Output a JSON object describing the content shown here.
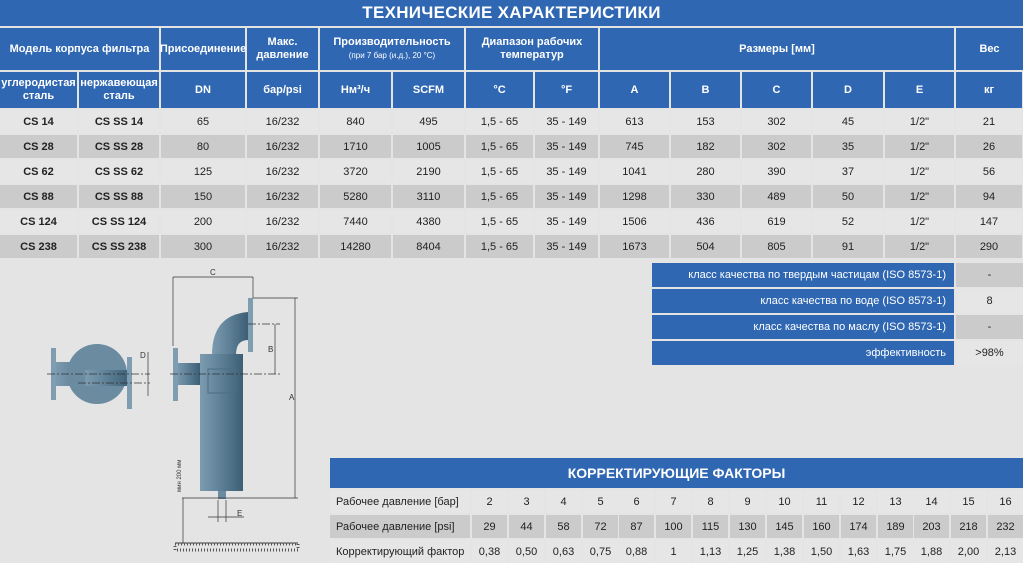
{
  "title": "ТЕХНИЧЕСКИЕ ХАРАКТЕРИСТИКИ",
  "colors": {
    "header_blue": "#2f67b2",
    "row_light": "#e6e6e6",
    "row_dark": "#cbcbcb",
    "background": "#e4e4e4"
  },
  "spec_table": {
    "group_headers": {
      "model": "Модель корпуса фильтра",
      "connection": "Присоединение",
      "max_pressure": "Макс. давление",
      "capacity": "Производительность",
      "capacity_note": "(при 7 бар (и.д.), 20 °C)",
      "temp_range": "Диапазон рабочих температур",
      "dimensions": "Размеры [мм]",
      "weight": "Вес"
    },
    "sub_headers": [
      "углеродистая сталь",
      "нержавеющая сталь",
      "DN",
      "бар/psi",
      "Нм³/ч",
      "SCFM",
      "°C",
      "°F",
      "A",
      "B",
      "C",
      "D",
      "E",
      "кг"
    ],
    "rows": [
      [
        "CS 14",
        "CS SS 14",
        "65",
        "16/232",
        "840",
        "495",
        "1,5 - 65",
        "35 - 149",
        "613",
        "153",
        "302",
        "45",
        "1/2\"",
        "21"
      ],
      [
        "CS 28",
        "CS SS 28",
        "80",
        "16/232",
        "1710",
        "1005",
        "1,5 - 65",
        "35 - 149",
        "745",
        "182",
        "302",
        "35",
        "1/2\"",
        "26"
      ],
      [
        "CS 62",
        "CS SS 62",
        "125",
        "16/232",
        "3720",
        "2190",
        "1,5 - 65",
        "35 - 149",
        "1041",
        "280",
        "390",
        "37",
        "1/2\"",
        "56"
      ],
      [
        "CS 88",
        "CS SS 88",
        "150",
        "16/232",
        "5280",
        "3110",
        "1,5 - 65",
        "35 - 149",
        "1298",
        "330",
        "489",
        "50",
        "1/2\"",
        "94"
      ],
      [
        "CS 124",
        "CS SS 124",
        "200",
        "16/232",
        "7440",
        "4380",
        "1,5 - 65",
        "35 - 149",
        "1506",
        "436",
        "619",
        "52",
        "1/2\"",
        "147"
      ],
      [
        "CS 238",
        "CS SS 238",
        "300",
        "16/232",
        "14280",
        "8404",
        "1,5 - 65",
        "35 - 149",
        "1673",
        "504",
        "805",
        "91",
        "1/2\"",
        "290"
      ]
    ]
  },
  "quality_table": [
    {
      "label": "класс качества по твердым частицам (ISO 8573-1)",
      "value": "-"
    },
    {
      "label": "класс качества по воде (ISO 8573-1)",
      "value": "8"
    },
    {
      "label": "класс качества по маслу (ISO 8573-1)",
      "value": "-"
    },
    {
      "label": "эффективность",
      "value": ">98%"
    }
  ],
  "diagram": {
    "labels": {
      "a": "A",
      "b": "B",
      "c": "C",
      "d": "D",
      "e": "E",
      "min": "мин 200 мм"
    }
  },
  "correction": {
    "title": "КОРРЕКТИРУЮЩИЕ ФАКТОРЫ",
    "rows": [
      {
        "label": "Рабочее давление [бар]",
        "values": [
          "2",
          "3",
          "4",
          "5",
          "6",
          "7",
          "8",
          "9",
          "10",
          "11",
          "12",
          "13",
          "14",
          "15",
          "16"
        ]
      },
      {
        "label": "Рабочее давление [psi]",
        "values": [
          "29",
          "44",
          "58",
          "72",
          "87",
          "100",
          "115",
          "130",
          "145",
          "160",
          "174",
          "189",
          "203",
          "218",
          "232"
        ]
      },
      {
        "label": "Корректирующий фактор",
        "values": [
          "0,38",
          "0,50",
          "0,63",
          "0,75",
          "0,88",
          "1",
          "1,13",
          "1,25",
          "1,38",
          "1,50",
          "1,63",
          "1,75",
          "1,88",
          "2,00",
          "2,13"
        ]
      }
    ]
  }
}
